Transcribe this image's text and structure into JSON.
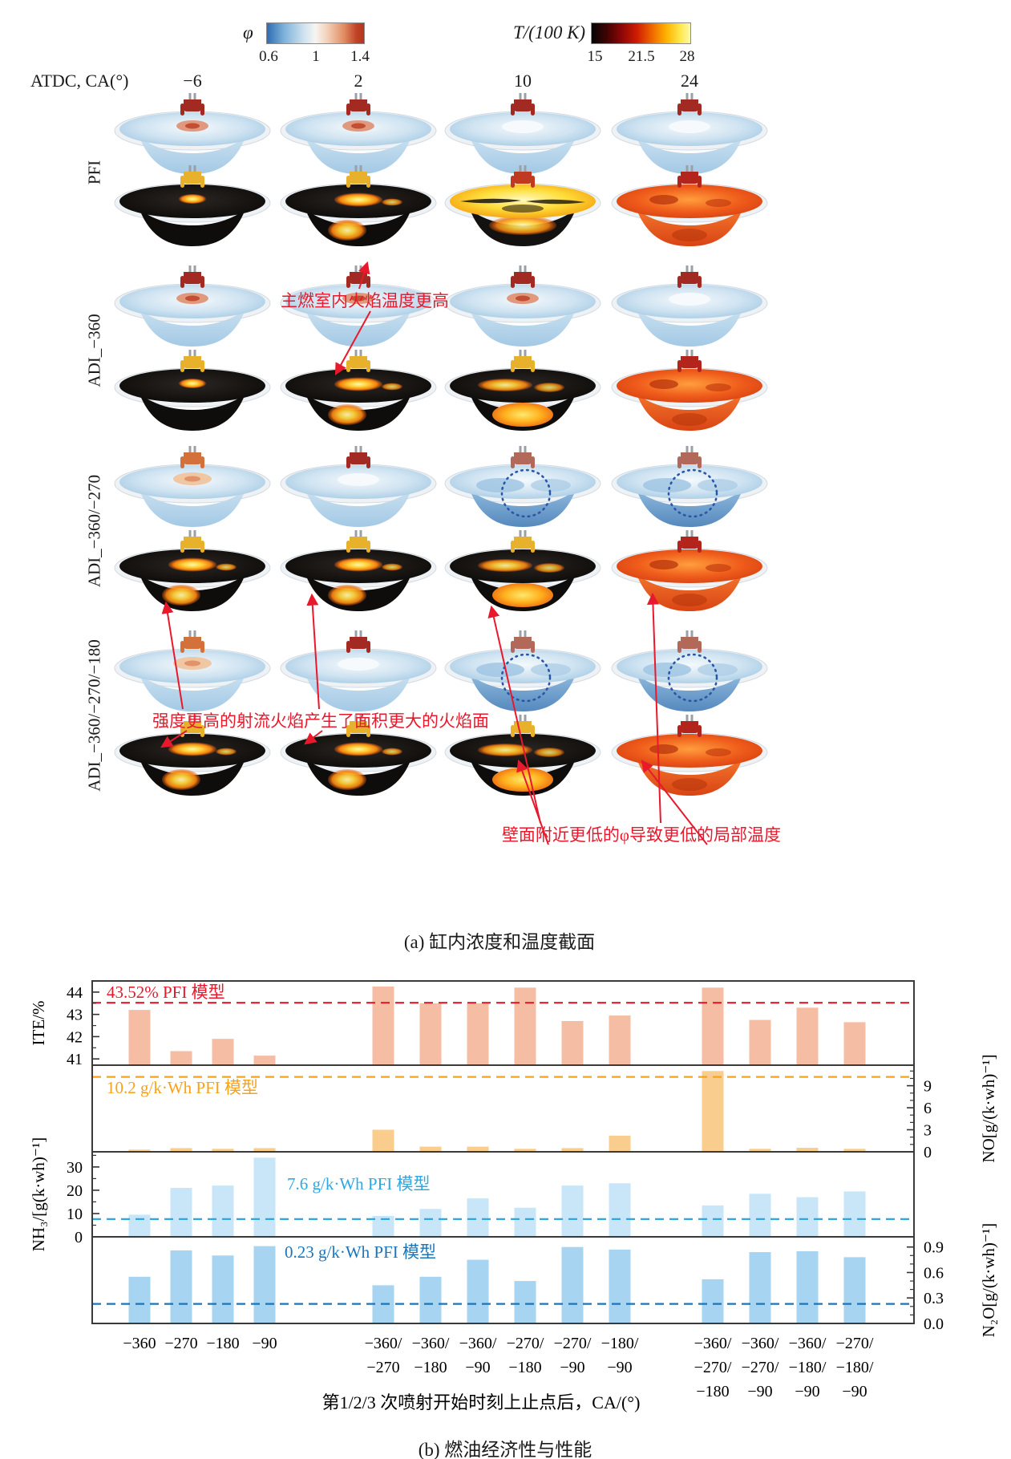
{
  "figure": {
    "part_a": {
      "colorbar_phi": {
        "label": "φ",
        "ticks": [
          "0.6",
          "1",
          "1.4"
        ]
      },
      "colorbar_temp": {
        "label": "T/(100 K)",
        "ticks": [
          "15",
          "21.5",
          "28"
        ]
      },
      "header": {
        "label": "ATDC, CA(°)",
        "columns": [
          "−6",
          "2",
          "10",
          "24"
        ]
      },
      "strategies": [
        {
          "label": "PFI",
          "phi": [
            "phi-red",
            "phi-red",
            "phi-plain",
            "phi-plain"
          ],
          "temp": [
            "t-spark",
            "t-grow",
            "t-bright",
            "t-full"
          ]
        },
        {
          "label": "ADI_−360",
          "phi": [
            "phi-red",
            "phi-red",
            "phi-red",
            "phi-plain"
          ],
          "temp": [
            "t-spark",
            "t-grow",
            "t-half",
            "t-full"
          ]
        },
        {
          "label": "ADI_−360/−270",
          "phi": [
            "phi-hot",
            "phi-plain",
            "phi-deep dotted",
            "phi-deep dotted"
          ],
          "temp": [
            "t-grow",
            "t-grow",
            "t-half",
            "t-full"
          ]
        },
        {
          "label": "ADI_−360/−270/−180",
          "phi": [
            "phi-hot",
            "phi-plain",
            "phi-deep dotted",
            "phi-deep dotted"
          ],
          "temp": [
            "t-grow",
            "t-grow",
            "t-half",
            "t-full"
          ]
        }
      ],
      "annotations": [
        "主燃室内火焰温度更高",
        "强度更高的射流火焰产生了面积更大的火焰面",
        "壁面附近更低的φ导致更低的局部温度"
      ],
      "caption": "(a) 缸内浓度和温度截面"
    },
    "caption_b": "(b) 燃油经济性与性能"
  },
  "chart_data": {
    "type": "bar",
    "categories": [
      "−360",
      "−270",
      "−180",
      "−90",
      "−360/−270",
      "−360/−180",
      "−360/−90",
      "−270/−180",
      "−270/−90",
      "−180/−90",
      "−360/−270/−180",
      "−360/−270/−90",
      "−360/−180/−90",
      "−270/−180/−90"
    ],
    "xlabel": "第1/2/3 次喷射开始时刻上止点后，CA/(°)",
    "legend": "none",
    "grid": false,
    "panels": [
      {
        "name": "ITE",
        "ylabel": "ITE/%",
        "axis_side": "left",
        "ticks": [
          41,
          42,
          43,
          44
        ],
        "tick_labels": [
          "41",
          "42",
          "43",
          "44"
        ],
        "ylim": [
          40.72,
          44.5
        ],
        "bar_color": "#f5bda4",
        "values": [
          43.2,
          41.35,
          41.9,
          41.15,
          44.25,
          43.5,
          43.5,
          44.2,
          42.7,
          42.95,
          44.2,
          42.75,
          43.3,
          42.65
        ],
        "ref_line": {
          "value": 43.52,
          "label": "43.52% PFI 模型",
          "color": "#e8192c"
        }
      },
      {
        "name": "NO",
        "ylabel": "NO[g/(k·wh)⁻¹]",
        "axis_side": "right",
        "ticks": [
          0,
          3,
          6,
          9
        ],
        "tick_labels": [
          "0",
          "3",
          "6",
          "9"
        ],
        "ylim": [
          0,
          11.8
        ],
        "bar_color": "#f8cd8d",
        "values": [
          0.3,
          0.5,
          0.4,
          0.5,
          3.0,
          0.7,
          0.7,
          0.4,
          0.5,
          2.2,
          11.0,
          0.4,
          0.55,
          0.4
        ],
        "ref_line": {
          "value": 10.2,
          "label": "10.2 g/k·Wh PFI 模型",
          "color": "#f7a21a"
        }
      },
      {
        "name": "NH3",
        "ylabel": "NH₃/[g(k·wh)⁻¹]",
        "axis_side": "left",
        "ticks": [
          0,
          10,
          20,
          30
        ],
        "tick_labels": [
          "0",
          "10",
          "20",
          "30"
        ],
        "ylim": [
          0,
          36.5
        ],
        "bar_color": "#c9e6f8",
        "values": [
          9.5,
          21,
          22,
          34,
          9,
          12,
          16.5,
          12.5,
          22,
          23,
          13.5,
          18.5,
          17,
          19.5
        ],
        "ref_line": {
          "value": 7.6,
          "label": "7.6 g/k·Wh PFI 模型",
          "color": "#2fa8e1"
        }
      },
      {
        "name": "N2O",
        "ylabel": "N₂O[g/(k·wh)⁻¹]",
        "axis_side": "right",
        "ticks": [
          0,
          0.3,
          0.6,
          0.9
        ],
        "tick_labels": [
          "0.0",
          "0.3",
          "0.6",
          "0.9"
        ],
        "ylim": [
          0,
          1.02
        ],
        "bar_color": "#a6d4f1",
        "values": [
          0.55,
          0.86,
          0.8,
          0.91,
          0.45,
          0.55,
          0.75,
          0.5,
          0.9,
          0.87,
          0.52,
          0.84,
          0.85,
          0.78
        ],
        "ref_line": {
          "value": 0.23,
          "label": "0.23 g/k·Wh PFI 模型",
          "color": "#1b75bb"
        }
      }
    ]
  }
}
